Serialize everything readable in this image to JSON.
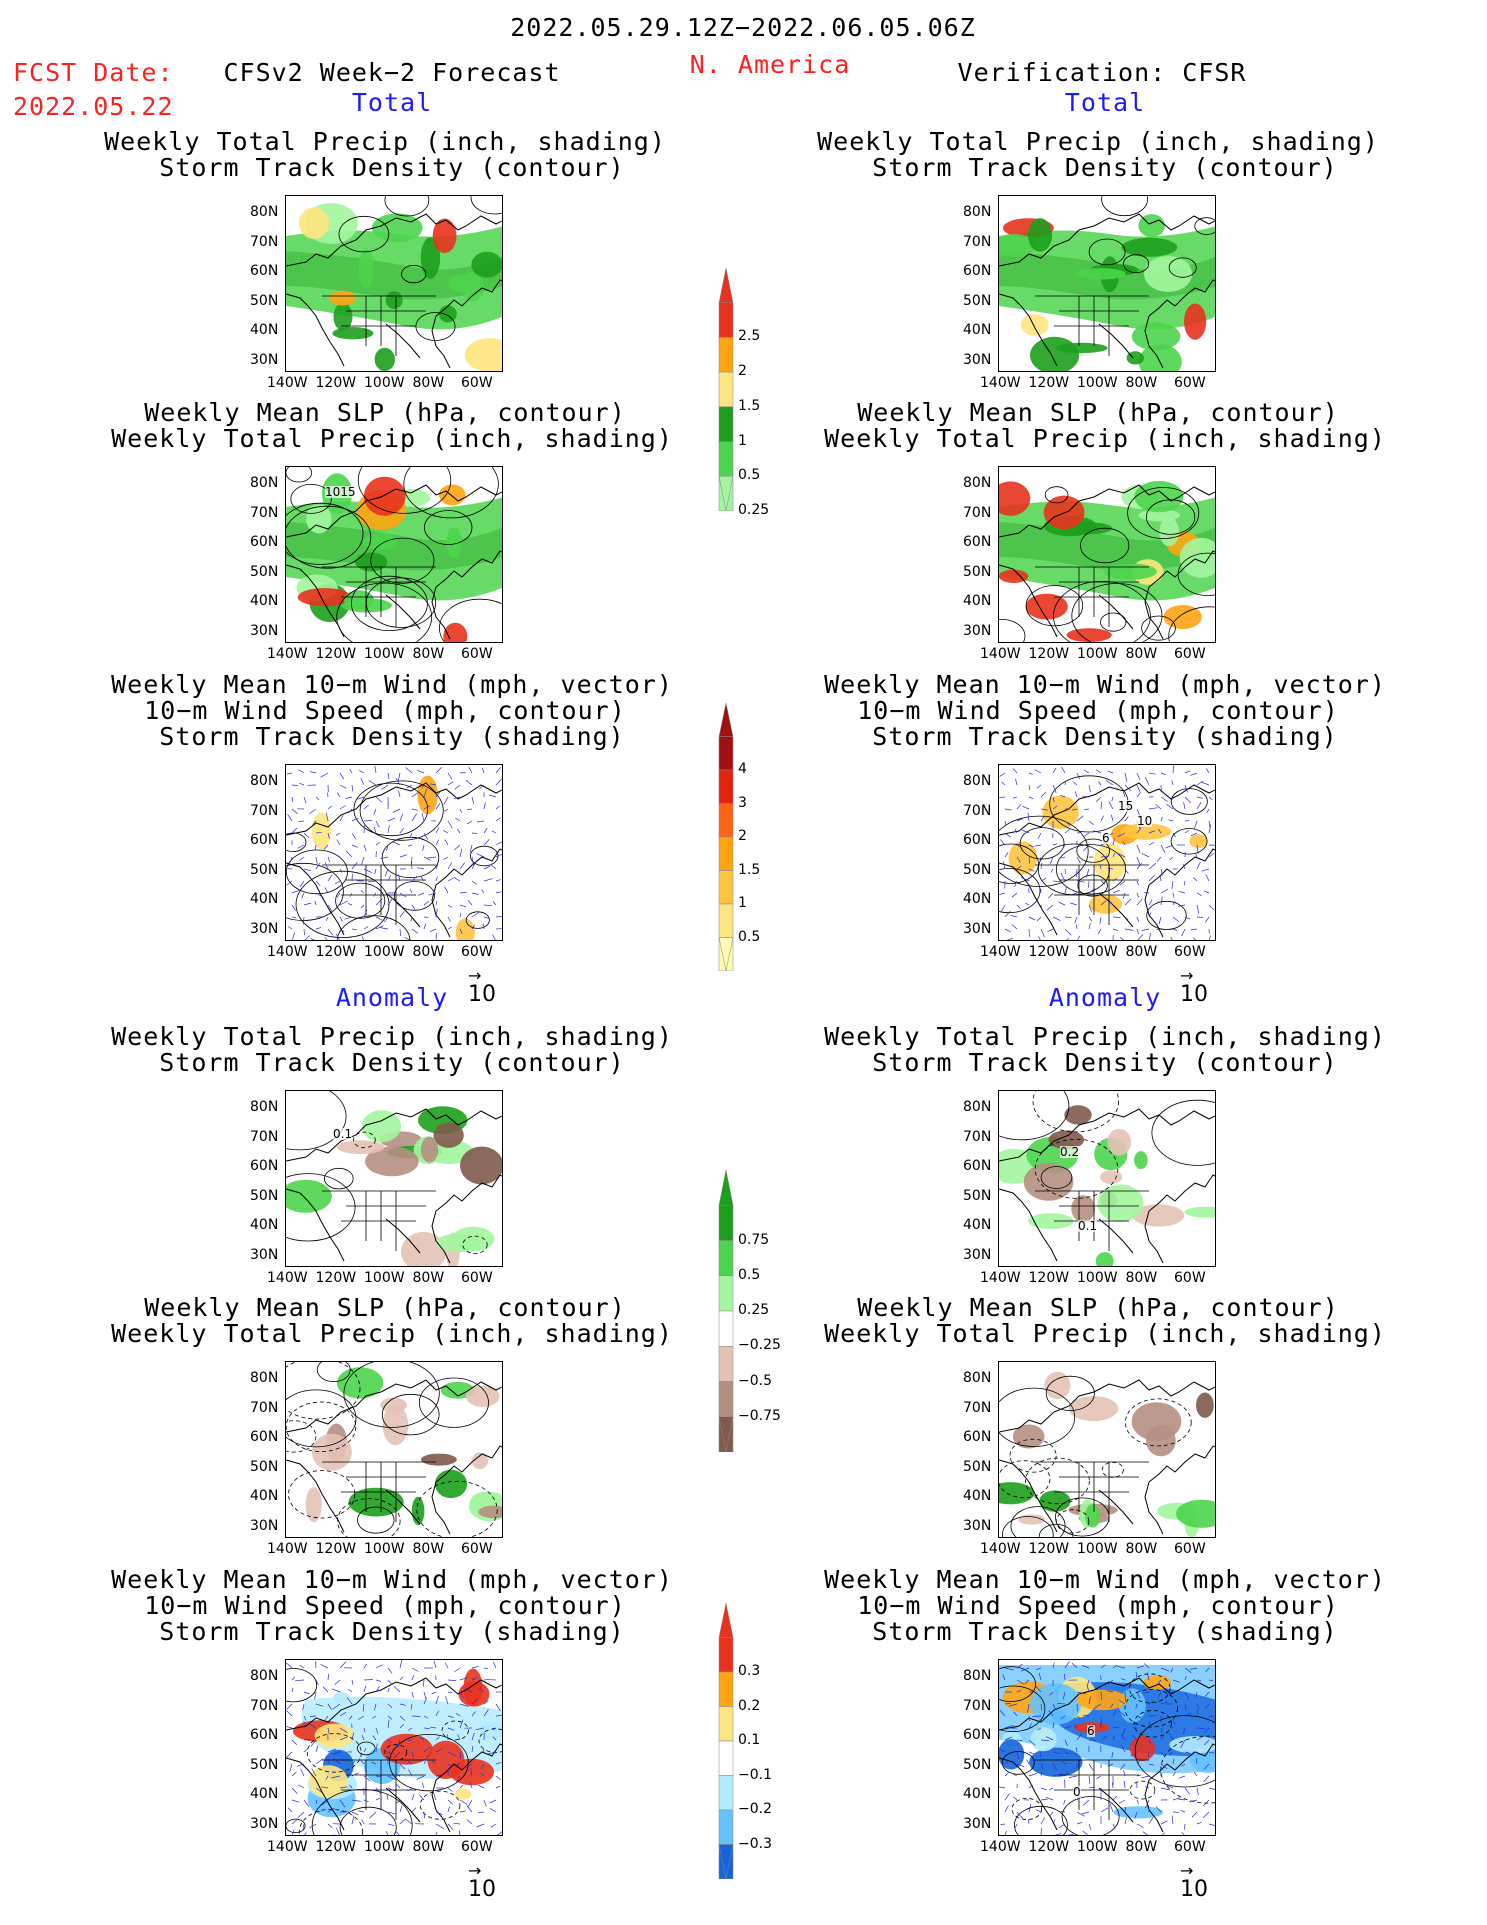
{
  "header": {
    "period": "2022.05.29.12Z−2022.06.05.06Z",
    "fcst_label": "FCST Date:",
    "fcst_date": "2022.05.22",
    "model": "CFSv2 Week−2 Forecast",
    "region": "N. America",
    "verification": "Verification: CFSR"
  },
  "sections": {
    "total": "Total",
    "anomaly": "Anomaly"
  },
  "panel_titles": {
    "precip_track": [
      "Weekly Total Precip (inch, shading)",
      "Storm Track Density (contour)"
    ],
    "slp_precip": [
      "Weekly Mean SLP (hPa, contour)",
      "Weekly Total Precip (inch, shading)"
    ],
    "wind_track": [
      "Weekly Mean 10−m Wind (mph, vector)",
      "10−m Wind Speed (mph, contour)",
      "Storm Track Density (shading)"
    ]
  },
  "axes": {
    "lat_ticks": [
      "80N",
      "70N",
      "60N",
      "50N",
      "40N",
      "30N"
    ],
    "lon_ticks": [
      "140W",
      "120W",
      "100W",
      "80W",
      "60W"
    ]
  },
  "vector_reference": "10",
  "contour_labels": {
    "slp_total_fcst": "1015",
    "track_anom_fcst": "0.1",
    "track_anom_verif_a": "0.2",
    "track_anom_verif_b": "0.1",
    "wind_total_verif_a": "15",
    "wind_total_verif_b": "10",
    "wind_total_verif_c": "6",
    "wind_anom_verif_a": "6",
    "wind_anom_verif_b": "0"
  },
  "colorbars": {
    "precip_total": {
      "ticks": [
        "2.5",
        "2",
        "1.5",
        "1",
        "0.5",
        "0.25"
      ],
      "colors": [
        "#e8321e",
        "#ffa514",
        "#ffe57f",
        "#1d9e1d",
        "#4cd44c",
        "#a3f59f"
      ]
    },
    "track_total": {
      "ticks": [
        "4",
        "3",
        "2",
        "1.5",
        "1",
        "0.5"
      ],
      "colors": [
        "#a01010",
        "#e2230e",
        "#ff6414",
        "#ffa514",
        "#ffc440",
        "#ffe57f",
        "#fffbb4"
      ]
    },
    "precip_anom": {
      "ticks": [
        "0.75",
        "0.5",
        "0.25",
        "−0.25",
        "−0.5",
        "−0.75"
      ],
      "colors": [
        "#1d9e1d",
        "#4cd44c",
        "#a3f59f",
        "#ffffff",
        "#e3c2b5",
        "#b58f81",
        "#7f5a4d"
      ]
    },
    "track_anom": {
      "ticks": [
        "0.3",
        "0.2",
        "0.1",
        "−0.1",
        "−0.2",
        "−0.3"
      ],
      "colors": [
        "#e8321e",
        "#ffa514",
        "#ffe57f",
        "#ffffff",
        "#b2eaff",
        "#64c2ff",
        "#1464dc"
      ]
    }
  }
}
